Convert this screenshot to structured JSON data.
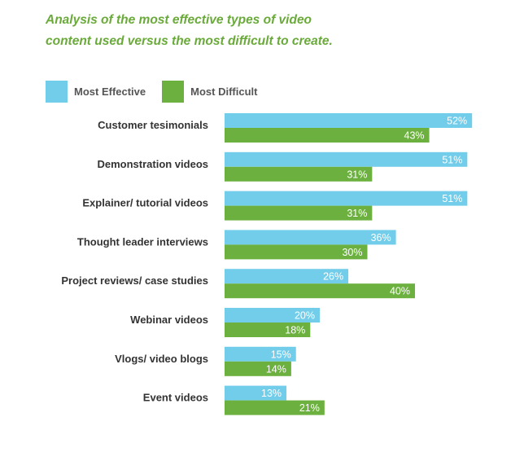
{
  "title_line1": "Analysis of the most effective types of video",
  "title_line2": "content used versus the most difficult to create.",
  "colors": {
    "effective": "#72cdeb",
    "difficult": "#6cb13f",
    "title": "#6aaa3a"
  },
  "chart_data": {
    "type": "bar",
    "orientation": "horizontal",
    "title": "Analysis of the most effective types of video content used versus the most difficult to create.",
    "xlabel": "",
    "ylabel": "",
    "xlim": [
      0,
      100
    ],
    "grid": false,
    "legend_position": "top-left",
    "categories": [
      "Customer tesimonials",
      "Demonstration videos",
      "Explainer/ tutorial videos",
      "Thought leader interviews",
      "Project reviews/ case studies",
      "Webinar videos",
      "Vlogs/ video blogs",
      "Event videos"
    ],
    "series": [
      {
        "name": "Most Effective",
        "values": [
          52,
          51,
          51,
          36,
          26,
          20,
          15,
          13
        ],
        "labels": [
          "52%",
          "51%",
          "51%",
          "36%",
          "26%",
          "20%",
          "15%",
          "13%"
        ]
      },
      {
        "name": "Most Difficult",
        "values": [
          43,
          31,
          31,
          30,
          40,
          18,
          14,
          21
        ],
        "labels": [
          "43%",
          "31%",
          "31%",
          "30%",
          "40%",
          "18%",
          "14%",
          "21%"
        ]
      }
    ]
  }
}
